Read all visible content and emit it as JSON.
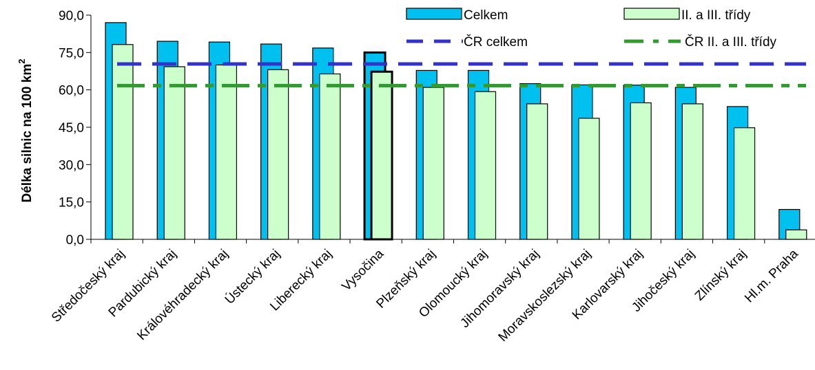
{
  "chart_data": {
    "type": "bar",
    "ylabel": "Délka silnic na 100 km",
    "ylabel_superscript": "2",
    "ylim": [
      0,
      90
    ],
    "yticks": [
      "0,0",
      "15,0",
      "30,0",
      "45,0",
      "60,0",
      "75,0",
      "90,0"
    ],
    "categories": [
      "Středočeský kraj",
      "Pardubický kraj",
      "Královéhradecký kraj",
      "Ústecký kraj",
      "Liberecký kraj",
      "Vysočina",
      "Plzeňský kraj",
      "Olomoucký kraj",
      "Jihomoravský kraj",
      "Moravskoslezský kraj",
      "Karlovarský kraj",
      "Jihočeský kraj",
      "Zlínský kraj",
      "Hl.m. Praha"
    ],
    "highlighted_category": "Vysočina",
    "series": [
      {
        "name": "Celkem",
        "values": [
          87.0,
          79.5,
          79.2,
          78.4,
          76.8,
          75.0,
          67.8,
          67.8,
          62.5,
          62.0,
          61.9,
          61.0,
          53.3,
          12.0
        ],
        "color": "#00c0f0"
      },
      {
        "name": "II. a III. třídy",
        "values": [
          78.2,
          69.3,
          70.0,
          68.1,
          66.4,
          67.3,
          61.0,
          59.3,
          54.4,
          48.6,
          54.8,
          54.4,
          44.8,
          3.8
        ],
        "color": "#ccffcc"
      }
    ],
    "reference_lines": [
      {
        "name": "ČR celkem",
        "value": 70.4,
        "color": "#3333cc"
      },
      {
        "name": "ČR II. a III. třídy",
        "value": 61.7,
        "color": "#339933"
      }
    ],
    "legend_position": "top-right",
    "grid": false
  }
}
